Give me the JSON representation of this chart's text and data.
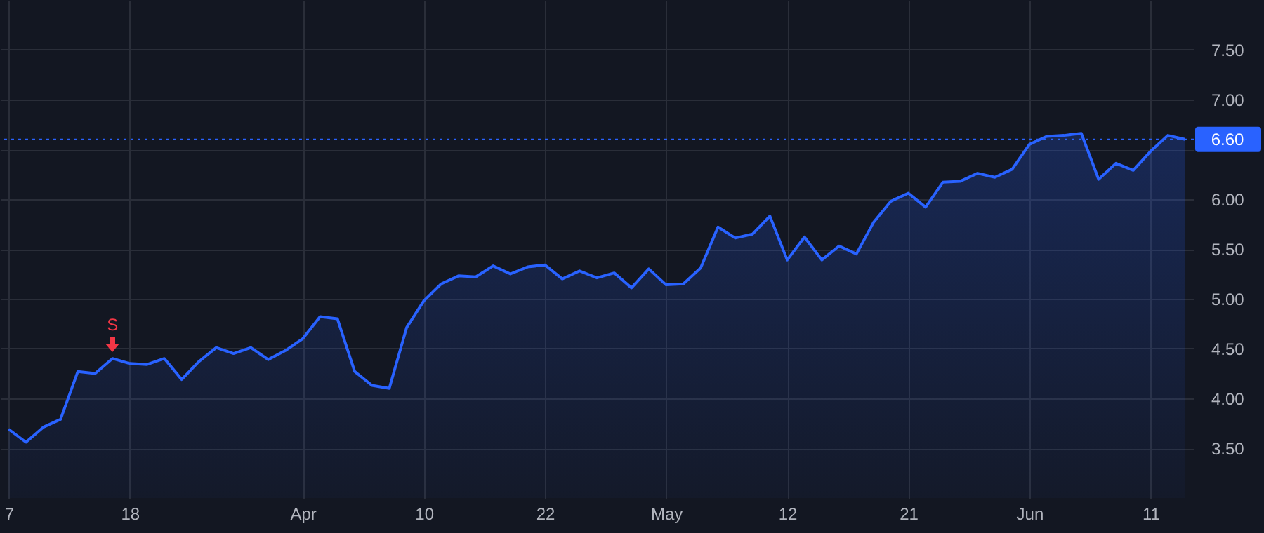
{
  "chart_data": {
    "type": "area",
    "categories": [
      "7",
      null,
      null,
      null,
      null,
      null,
      null,
      "18",
      null,
      null,
      null,
      null,
      null,
      null,
      null,
      null,
      null,
      "Apr",
      null,
      null,
      null,
      null,
      null,
      null,
      "10",
      null,
      null,
      null,
      null,
      null,
      null,
      "22",
      null,
      null,
      null,
      null,
      null,
      null,
      "May",
      null,
      null,
      null,
      null,
      null,
      null,
      "12",
      null,
      null,
      null,
      null,
      null,
      null,
      "21",
      null,
      null,
      null,
      null,
      null,
      null,
      "Jun",
      null,
      null,
      null,
      null,
      null,
      null,
      "11",
      null,
      null
    ],
    "series": [
      {
        "color": "#2962ff",
        "values": [
          3.69,
          3.56,
          3.71,
          3.79,
          4.27,
          4.25,
          4.4,
          4.35,
          4.34,
          4.4,
          4.19,
          4.37,
          4.51,
          4.45,
          4.51,
          4.39,
          4.48,
          4.6,
          4.82,
          4.8,
          4.27,
          4.13,
          4.1,
          4.71,
          4.98,
          5.15,
          5.23,
          5.22,
          5.33,
          5.25,
          5.32,
          5.34,
          5.2,
          5.28,
          5.21,
          5.26,
          5.11,
          5.3,
          5.14,
          5.15,
          5.31,
          5.72,
          5.61,
          5.65,
          5.83,
          5.39,
          5.62,
          5.39,
          5.53,
          5.45,
          5.77,
          5.98,
          6.06,
          5.92,
          6.17,
          6.18,
          6.26,
          6.22,
          6.3,
          6.55,
          6.63,
          6.64,
          6.66,
          6.2,
          6.36,
          6.29,
          6.48,
          6.64,
          6.6
        ]
      }
    ],
    "ylim": [
      3.0,
      8.0
    ],
    "yticks": [
      {
        "value": 3.5,
        "label": "3.50"
      },
      {
        "value": 4.0,
        "label": "4.00"
      },
      {
        "value": 4.5,
        "label": "4.50"
      },
      {
        "value": 5.0,
        "label": "5.00"
      },
      {
        "value": 5.5,
        "label": "5.50"
      },
      {
        "value": 6.0,
        "label": "6.00"
      },
      {
        "value": 6.5,
        "label": null
      },
      {
        "value": 7.0,
        "label": "7.00"
      },
      {
        "value": 7.5,
        "label": "7.50"
      }
    ],
    "grid": true,
    "ref_lines": [
      {
        "axis": "y",
        "value": 6.6,
        "label": "6.60",
        "color": "#2962ff",
        "line_style": "dotted"
      }
    ],
    "annotations": [
      {
        "text": "S",
        "y": 4.4
      }
    ]
  }
}
